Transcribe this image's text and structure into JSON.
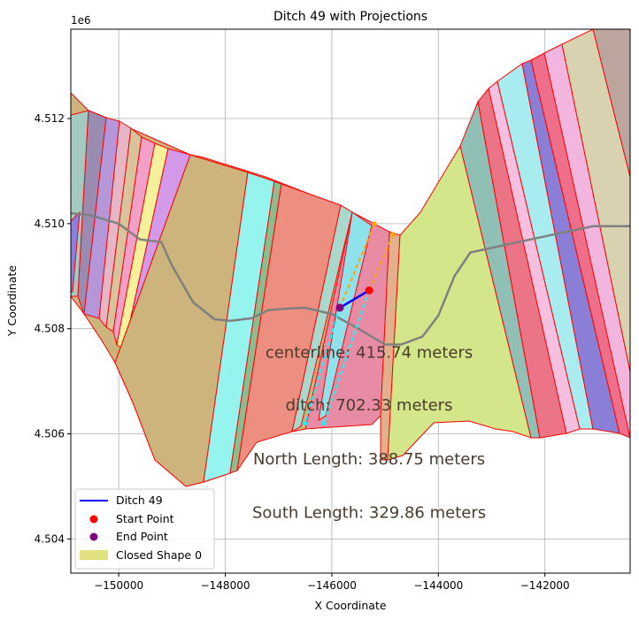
{
  "chart_data": {
    "type": "line",
    "title": "Ditch 49 with Projections",
    "xlabel": "X Coordinate",
    "ylabel": "Y Coordinate",
    "y_offset_label": "1e6",
    "xlim": [
      -150900,
      -140400
    ],
    "ylim": [
      4503350,
      4513700
    ],
    "xticks": [
      -150000,
      -148000,
      -146000,
      -144000,
      -142000
    ],
    "xtick_labels": [
      "−150000",
      "−148000",
      "−146000",
      "−144000",
      "−142000"
    ],
    "yticks": [
      4504000,
      4506000,
      4508000,
      4510000,
      4512000
    ],
    "ytick_labels": [
      "4.504",
      "4.506",
      "4.508",
      "4.510",
      "4.512"
    ],
    "grid": true,
    "legend_position": "lower-left",
    "series": [
      {
        "name": "Ditch 49",
        "kind": "line",
        "color": "#0000ff",
        "points": [
          [
            -145850,
            4508400
          ],
          [
            -145300,
            4508730
          ]
        ]
      },
      {
        "name": "Start Point",
        "kind": "point",
        "color": "#ff0000",
        "points": [
          [
            -145300,
            4508730
          ]
        ]
      },
      {
        "name": "End Point",
        "kind": "point",
        "color": "#800080",
        "points": [
          [
            -145850,
            4508400
          ]
        ]
      },
      {
        "name": "Closed Shape 0",
        "kind": "area",
        "color": "#d4d44a"
      }
    ],
    "centerline_path": [
      [
        -150900,
        4510200
      ],
      [
        -150500,
        4510150
      ],
      [
        -150000,
        4510000
      ],
      [
        -149600,
        4509700
      ],
      [
        -149200,
        4509650
      ],
      [
        -149000,
        4509200
      ],
      [
        -148600,
        4508500
      ],
      [
        -148200,
        4508180
      ],
      [
        -147900,
        4508150
      ],
      [
        -147500,
        4508200
      ],
      [
        -147200,
        4508350
      ],
      [
        -146900,
        4508380
      ],
      [
        -146500,
        4508400
      ],
      [
        -146000,
        4508280
      ],
      [
        -145500,
        4508000
      ],
      [
        -145000,
        4507700
      ],
      [
        -144700,
        4507700
      ],
      [
        -144300,
        4507850
      ],
      [
        -144000,
        4508250
      ],
      [
        -143700,
        4509000
      ],
      [
        -143400,
        4509450
      ],
      [
        -142500,
        4509650
      ],
      [
        -141800,
        4509800
      ],
      [
        -141100,
        4509950
      ],
      [
        -140400,
        4509950
      ]
    ],
    "projection_lines": [
      {
        "color": "#ffa500",
        "points": [
          [
            -145300,
            4508730
          ],
          [
            -144850,
            4509800
          ]
        ]
      },
      {
        "color": "#ffa500",
        "points": [
          [
            -145850,
            4508400
          ],
          [
            -145200,
            4510000
          ]
        ]
      },
      {
        "color": "#00ffff",
        "points": [
          [
            -145300,
            4508730
          ],
          [
            -146150,
            4506200
          ]
        ]
      },
      {
        "color": "#00ffff",
        "points": [
          [
            -145850,
            4508400
          ],
          [
            -146500,
            4506200
          ]
        ]
      }
    ],
    "annotations": [
      {
        "text": "centerline: 415.74 meters",
        "x": -145300,
        "y": 4507450
      },
      {
        "text": "ditch: 702.33 meters",
        "x": -145300,
        "y": 4506450
      },
      {
        "text": "North Length: 388.75 meters",
        "x": -145300,
        "y": 4505420
      },
      {
        "text": "South Length: 329.86 meters",
        "x": -145300,
        "y": 4504400
      }
    ]
  }
}
